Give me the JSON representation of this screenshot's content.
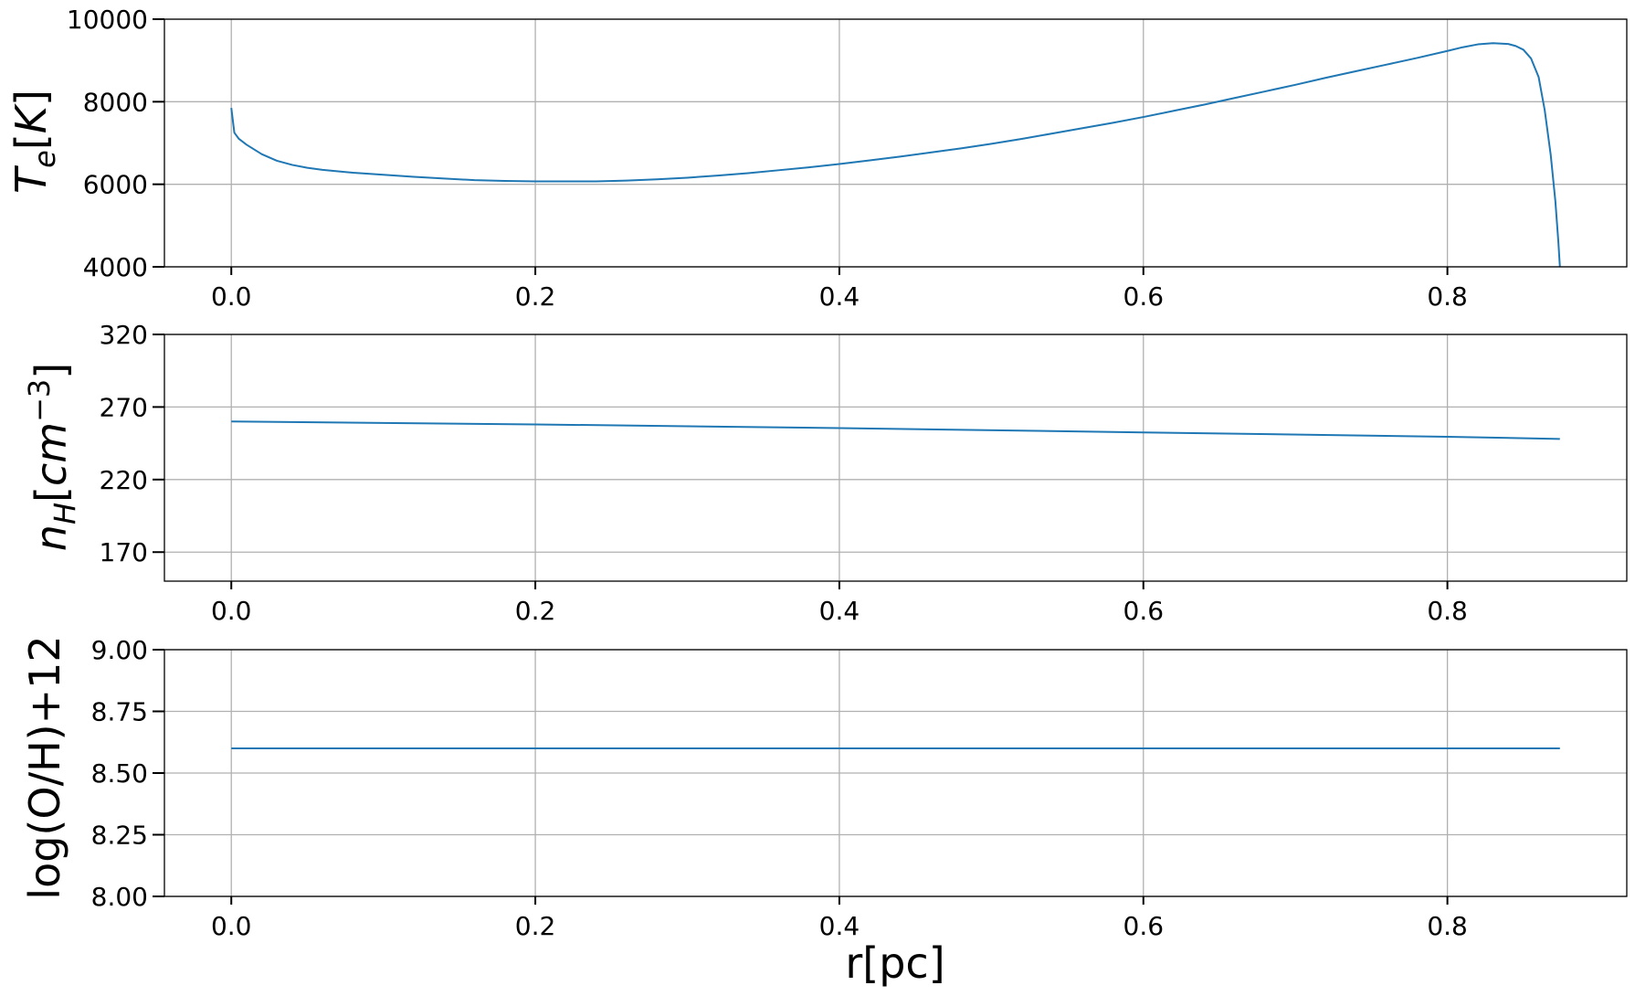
{
  "colors": {
    "line": "#1f77b4",
    "grid": "#b0b0b0",
    "axes": "#000000",
    "background": "#ffffff"
  },
  "chart_data": [
    {
      "type": "line",
      "ylabel": "T_e[K]",
      "xlim": [
        -0.044,
        0.918
      ],
      "ylim": [
        4000,
        10000
      ],
      "x_ticks": [
        0.0,
        0.2,
        0.4,
        0.6,
        0.8
      ],
      "x_tick_labels": [
        "0.0",
        "0.2",
        "0.4",
        "0.6",
        "0.8"
      ],
      "y_ticks": [
        4000,
        6000,
        8000,
        10000
      ],
      "y_tick_labels": [
        "4000",
        "6000",
        "8000",
        "10000"
      ],
      "grid": true,
      "series": [
        {
          "x": [
            0.0,
            0.002,
            0.005,
            0.01,
            0.02,
            0.03,
            0.04,
            0.05,
            0.06,
            0.08,
            0.1,
            0.12,
            0.14,
            0.16,
            0.18,
            0.2,
            0.22,
            0.24,
            0.26,
            0.28,
            0.3,
            0.32,
            0.34,
            0.36,
            0.38,
            0.4,
            0.42,
            0.44,
            0.46,
            0.48,
            0.5,
            0.52,
            0.54,
            0.56,
            0.58,
            0.6,
            0.62,
            0.64,
            0.66,
            0.68,
            0.7,
            0.72,
            0.74,
            0.76,
            0.78,
            0.8,
            0.81,
            0.82,
            0.83,
            0.84,
            0.845,
            0.85,
            0.855,
            0.86,
            0.864,
            0.868,
            0.871,
            0.873,
            0.874
          ],
          "y": [
            7850,
            7250,
            7100,
            6960,
            6730,
            6570,
            6470,
            6400,
            6350,
            6280,
            6230,
            6180,
            6140,
            6100,
            6080,
            6070,
            6070,
            6070,
            6090,
            6120,
            6160,
            6210,
            6270,
            6340,
            6410,
            6490,
            6580,
            6670,
            6770,
            6870,
            6980,
            7100,
            7230,
            7360,
            7490,
            7630,
            7780,
            7930,
            8090,
            8250,
            8410,
            8580,
            8740,
            8900,
            9060,
            9230,
            9320,
            9390,
            9420,
            9400,
            9350,
            9260,
            9050,
            8600,
            7800,
            6700,
            5600,
            4600,
            4000
          ]
        }
      ]
    },
    {
      "type": "line",
      "ylabel": "n_H[cm^-3]",
      "xlim": [
        -0.044,
        0.918
      ],
      "ylim": [
        150,
        320
      ],
      "x_ticks": [
        0.0,
        0.2,
        0.4,
        0.6,
        0.8
      ],
      "x_tick_labels": [
        "0.0",
        "0.2",
        "0.4",
        "0.6",
        "0.8"
      ],
      "y_ticks": [
        170,
        220,
        270,
        320
      ],
      "y_tick_labels": [
        "170",
        "220",
        "270",
        "320"
      ],
      "grid": true,
      "series": [
        {
          "x": [
            0.0,
            0.2,
            0.4,
            0.6,
            0.8,
            0.874
          ],
          "y": [
            260,
            258,
            255.5,
            252.5,
            249.5,
            248
          ]
        }
      ]
    },
    {
      "type": "line",
      "ylabel": "log(O/H)+12",
      "xlabel": "r[pc]",
      "xlim": [
        -0.044,
        0.918
      ],
      "ylim": [
        8.0,
        9.0
      ],
      "x_ticks": [
        0.0,
        0.2,
        0.4,
        0.6,
        0.8
      ],
      "x_tick_labels": [
        "0.0",
        "0.2",
        "0.4",
        "0.6",
        "0.8"
      ],
      "y_ticks": [
        8.0,
        8.25,
        8.5,
        8.75,
        9.0
      ],
      "y_tick_labels": [
        "8.00",
        "8.25",
        "8.50",
        "8.75",
        "9.00"
      ],
      "grid": true,
      "series": [
        {
          "x": [
            0.0,
            0.874
          ],
          "y": [
            8.6,
            8.6
          ]
        }
      ]
    }
  ]
}
